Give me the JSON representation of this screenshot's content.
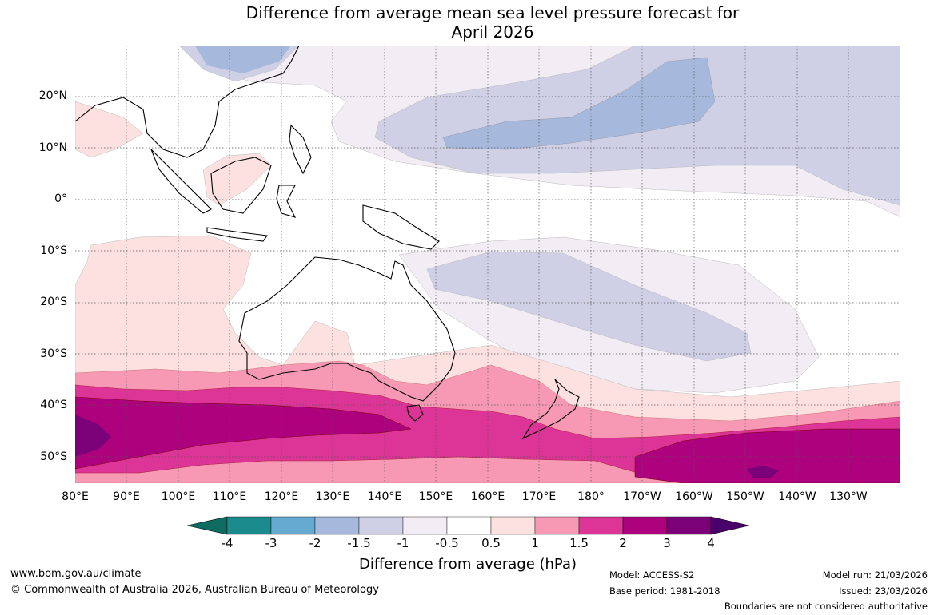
{
  "title_line1": "Difference from average mean sea level pressure forecast for",
  "title_line2": "April 2026",
  "lat_labels": [
    "20°N",
    "10°N",
    "0°",
    "10°S",
    "20°S",
    "30°S",
    "40°S",
    "50°S"
  ],
  "lon_labels": [
    "80°E",
    "90°E",
    "100°E",
    "110°E",
    "120°E",
    "130°E",
    "140°E",
    "150°E",
    "160°E",
    "170°E",
    "180°",
    "170°W",
    "160°W",
    "150°W",
    "140°W",
    "130°W"
  ],
  "colorbar": {
    "ticks": [
      "-4",
      "-3",
      "-2",
      "-1.5",
      "-1",
      "-0.5",
      "0.5",
      "1",
      "1.5",
      "2",
      "3",
      "4"
    ],
    "colors": [
      "#1a8a8c",
      "#66a9d1",
      "#a6b9dc",
      "#cfcfe5",
      "#f2ecf5",
      "#ffffff",
      "#fde0e0",
      "#f799b5",
      "#dd3497",
      "#ae017e",
      "#7a0177"
    ],
    "under_color": "#0e6b62",
    "over_color": "#49006a",
    "title": "Difference from average (hPa)"
  },
  "footer": {
    "website": "www.bom.gov.au/climate",
    "copyright": "© Commonwealth of Australia 2026, Australian Bureau of Meteorology",
    "model": "Model: ACCESS-S2",
    "base_period": "Base period: 1981-2018",
    "model_run": "Model run: 21/03/2026",
    "issued": "Issued: 23/03/2026",
    "disclaimer": "Boundaries are not considered authoritative"
  }
}
